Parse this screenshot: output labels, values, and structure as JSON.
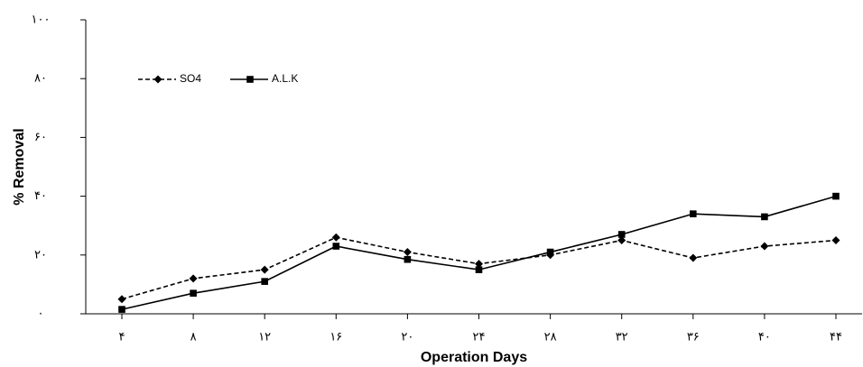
{
  "chart_data": {
    "type": "line",
    "x_label": "Operation Days",
    "y_label": "% Removal",
    "categories": [
      "۴",
      "۸",
      "۱۲",
      "۱۶",
      "۲۰",
      "۲۴",
      "۲۸",
      "۳۲",
      "۳۶",
      "۴۰",
      "۴۴"
    ],
    "series": [
      {
        "name": "SO4",
        "color": "#000000",
        "dash": "dashed",
        "marker": "diamond",
        "values": [
          5,
          12,
          15,
          26,
          21,
          17,
          20,
          25,
          19,
          23,
          25
        ]
      },
      {
        "name": "A.L.K",
        "color": "#000000",
        "dash": "solid",
        "marker": "square",
        "values": [
          1.5,
          7,
          11,
          23,
          18.5,
          15,
          21,
          27,
          34,
          33,
          40
        ]
      }
    ],
    "ylim": [
      0,
      100
    ],
    "yticks": [
      {
        "value": 0,
        "label": "۰"
      },
      {
        "value": 20,
        "label": "۲۰"
      },
      {
        "value": 40,
        "label": "۴۰"
      },
      {
        "value": 60,
        "label": "۶۰"
      },
      {
        "value": 80,
        "label": "۸۰"
      },
      {
        "value": 100,
        "label": "۱۰۰"
      }
    ],
    "grid": false,
    "legend": "top-left"
  }
}
